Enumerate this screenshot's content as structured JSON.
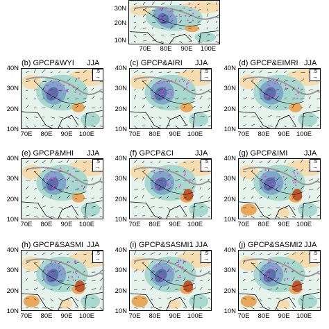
{
  "colors": {
    "wet_dark": "#5a6fa8",
    "wet_mid": "#7fa7c9",
    "wet_light": "#a9d8cf",
    "neutral": "#e6f3ec",
    "dry_light": "#f5ddb0",
    "dry_mid": "#e9a85c",
    "dry_dark": "#c0562c",
    "stipple": "#e040e0",
    "terrain": "#999999"
  },
  "common": {
    "season": "JJA",
    "reference_vector": ".5",
    "y_ticks": [
      "40N",
      "30N",
      "20N",
      "10N"
    ],
    "x_ticks": [
      "70E",
      "80E",
      "90E",
      "100E"
    ]
  },
  "top_panel": {
    "y_ticks": [
      "30N",
      "20N",
      "10N"
    ],
    "x_ticks": [
      "70E",
      "80E",
      "90E",
      "100E"
    ]
  },
  "panels": [
    {
      "title": "(b) GPCP&WYI"
    },
    {
      "title": "(c) GPCP&AIRI"
    },
    {
      "title": "(d) GPCP&EIMRI"
    },
    {
      "title": "(e) GPCP&MHI"
    },
    {
      "title": "(f) GPCP&CI"
    },
    {
      "title": "(g) GPCP&IMI"
    },
    {
      "title": "(h) GPCP&SASMI"
    },
    {
      "title": "(i) GPCP&SASMI1"
    },
    {
      "title": "(j) GPCP&SASMI2"
    }
  ],
  "chart_data": {
    "type": "heatmap",
    "description_free": true,
    "x_axis": {
      "ticks": [
        "70E",
        "80E",
        "90E",
        "100E"
      ],
      "range": [
        60,
        105
      ]
    },
    "y_axis": {
      "ticks": [
        "10N",
        "20N",
        "30N",
        "40N"
      ],
      "range": [
        8,
        41
      ]
    },
    "season": "JJA",
    "reference_vector": 0.5,
    "panels": [
      "(b) GPCP&WYI",
      "(c) GPCP&AIRI",
      "(d) GPCP&EIMRI",
      "(e) GPCP&MHI",
      "(f) GPCP&CI",
      "(g) GPCP&IMI",
      "(h) GPCP&SASMI",
      "(i) GPCP&SASMI1",
      "(j) GPCP&SASMI2"
    ]
  }
}
